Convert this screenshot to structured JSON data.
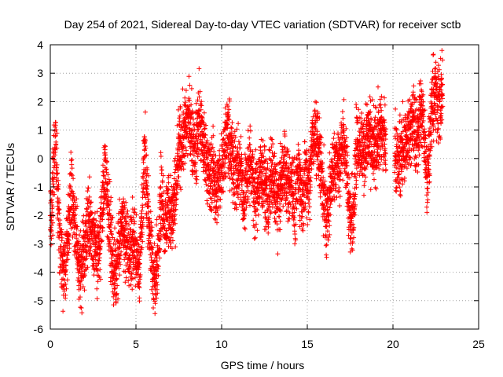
{
  "chart_data": {
    "type": "scatter",
    "title": "Day 254 of 2021, Sidereal Day-to-day VTEC variation (SDTVAR) for receiver sctb",
    "xlabel": "GPS time / hours",
    "ylabel": "SDTVAR / TECUs",
    "xlim": [
      0,
      25
    ],
    "ylim": [
      -6,
      4
    ],
    "xticks": [
      0,
      5,
      10,
      15,
      20,
      25
    ],
    "yticks": [
      -6,
      -5,
      -4,
      -3,
      -2,
      -1,
      0,
      1,
      2,
      3,
      4
    ],
    "grid": true,
    "marker": "+",
    "color": "#ff0000",
    "trend": [
      [
        0.0,
        -2.6
      ],
      [
        0.15,
        -1.0
      ],
      [
        0.3,
        0.8
      ],
      [
        0.45,
        -1.5
      ],
      [
        0.6,
        -3.2
      ],
      [
        0.8,
        -4.3
      ],
      [
        1.0,
        -3.0
      ],
      [
        1.2,
        -1.0
      ],
      [
        1.4,
        -2.0
      ],
      [
        1.6,
        -3.5
      ],
      [
        1.8,
        -4.1
      ],
      [
        2.0,
        -3.2
      ],
      [
        2.2,
        -2.1
      ],
      [
        2.4,
        -2.4
      ],
      [
        2.6,
        -3.0
      ],
      [
        2.8,
        -3.6
      ],
      [
        3.0,
        -2.2
      ],
      [
        3.2,
        -0.3
      ],
      [
        3.4,
        -1.8
      ],
      [
        3.6,
        -3.3
      ],
      [
        3.8,
        -4.2
      ],
      [
        4.0,
        -3.0
      ],
      [
        4.2,
        -2.2
      ],
      [
        4.4,
        -3.0
      ],
      [
        4.6,
        -3.4
      ],
      [
        4.8,
        -2.9
      ],
      [
        5.0,
        -3.4
      ],
      [
        5.2,
        -3.8
      ],
      [
        5.4,
        -1.5
      ],
      [
        5.5,
        0.3
      ],
      [
        5.7,
        -1.8
      ],
      [
        5.9,
        -3.3
      ],
      [
        6.1,
        -4.6
      ],
      [
        6.3,
        -3.0
      ],
      [
        6.5,
        -1.0
      ],
      [
        6.7,
        -2.5
      ],
      [
        6.9,
        -1.6
      ],
      [
        7.1,
        -2.1
      ],
      [
        7.3,
        -1.3
      ],
      [
        7.5,
        0.2
      ],
      [
        7.7,
        0.6
      ],
      [
        7.9,
        1.1
      ],
      [
        8.1,
        1.4
      ],
      [
        8.3,
        0.7
      ],
      [
        8.5,
        0.2
      ],
      [
        8.7,
        1.5
      ],
      [
        8.9,
        0.6
      ],
      [
        9.1,
        0.1
      ],
      [
        9.3,
        -0.7
      ],
      [
        9.5,
        -0.4
      ],
      [
        9.7,
        -1.2
      ],
      [
        9.9,
        -0.6
      ],
      [
        10.1,
        0.1
      ],
      [
        10.3,
        0.9
      ],
      [
        10.5,
        0.3
      ],
      [
        10.7,
        -0.2
      ],
      [
        10.9,
        -0.7
      ],
      [
        11.1,
        -0.3
      ],
      [
        11.3,
        -1.5
      ],
      [
        11.5,
        -0.5
      ],
      [
        11.7,
        -0.1
      ],
      [
        11.9,
        -1.4
      ],
      [
        12.1,
        -1.0
      ],
      [
        12.3,
        -0.4
      ],
      [
        12.5,
        -0.8
      ],
      [
        12.7,
        -1.5
      ],
      [
        12.9,
        -0.5
      ],
      [
        13.1,
        -0.9
      ],
      [
        13.3,
        -1.6
      ],
      [
        13.5,
        -0.7
      ],
      [
        13.7,
        -0.3
      ],
      [
        13.9,
        -1.1
      ],
      [
        14.1,
        -0.7
      ],
      [
        14.3,
        -1.9
      ],
      [
        14.5,
        -0.4
      ],
      [
        14.7,
        -1.4
      ],
      [
        14.9,
        -0.6
      ],
      [
        15.1,
        -0.8
      ],
      [
        15.3,
        0.6
      ],
      [
        15.5,
        0.8
      ],
      [
        15.7,
        0.2
      ],
      [
        15.9,
        -0.9
      ],
      [
        16.1,
        -2.3
      ],
      [
        16.3,
        -1.2
      ],
      [
        16.5,
        -0.4
      ],
      [
        16.7,
        0.1
      ],
      [
        16.9,
        -0.2
      ],
      [
        17.1,
        0.8
      ],
      [
        17.3,
        -0.3
      ],
      [
        17.5,
        -2.4
      ],
      [
        17.7,
        -1.7
      ],
      [
        17.9,
        0.8
      ],
      [
        18.1,
        0.5
      ],
      [
        18.3,
        0.2
      ],
      [
        18.5,
        0.9
      ],
      [
        18.7,
        0.7
      ],
      [
        18.9,
        0.1
      ],
      [
        19.1,
        0.7
      ],
      [
        19.3,
        1.0
      ],
      [
        19.5,
        0.6
      ],
      [
        20.2,
        0.1
      ],
      [
        20.4,
        -0.1
      ],
      [
        20.6,
        0.3
      ],
      [
        20.8,
        0.6
      ],
      [
        21.0,
        1.1
      ],
      [
        21.2,
        1.4
      ],
      [
        21.4,
        0.5
      ],
      [
        21.6,
        1.8
      ],
      [
        21.8,
        1.1
      ],
      [
        22.0,
        -0.8
      ],
      [
        22.2,
        1.2
      ],
      [
        22.4,
        2.3
      ],
      [
        22.6,
        2.0
      ],
      [
        22.8,
        1.8
      ],
      [
        22.9,
        2.4
      ]
    ],
    "gaps": [
      [
        19.6,
        20.1
      ],
      [
        23.0,
        25.0
      ]
    ]
  }
}
